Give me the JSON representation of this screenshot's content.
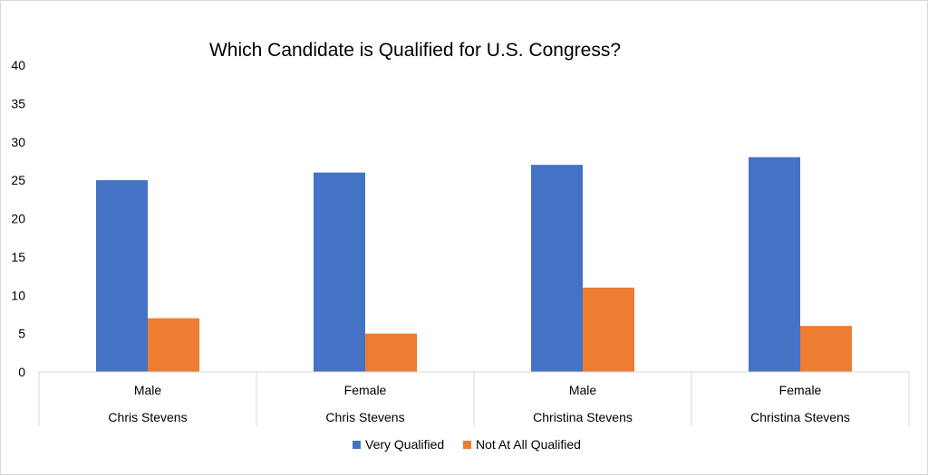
{
  "chart_data": {
    "type": "bar",
    "title": "Which Candidate is Qualified for U.S. Congress?",
    "xlabel": "",
    "ylabel": "",
    "ylim": [
      0,
      40
    ],
    "yticks": [
      0,
      5,
      10,
      15,
      20,
      25,
      30,
      35,
      40
    ],
    "categories": [
      {
        "gender": "Male",
        "candidate": "Chris Stevens"
      },
      {
        "gender": "Female",
        "candidate": "Chris Stevens"
      },
      {
        "gender": "Male",
        "candidate": "Christina Stevens"
      },
      {
        "gender": "Female",
        "candidate": "Christina Stevens"
      }
    ],
    "series": [
      {
        "name": "Very Qualified",
        "color": "#4472c4",
        "values": [
          25,
          26,
          27,
          28
        ]
      },
      {
        "name": "Not At All Qualified",
        "color": "#ed7d31",
        "values": [
          7,
          5,
          11,
          6
        ]
      }
    ],
    "grid": false,
    "legend": "bottom-center"
  }
}
